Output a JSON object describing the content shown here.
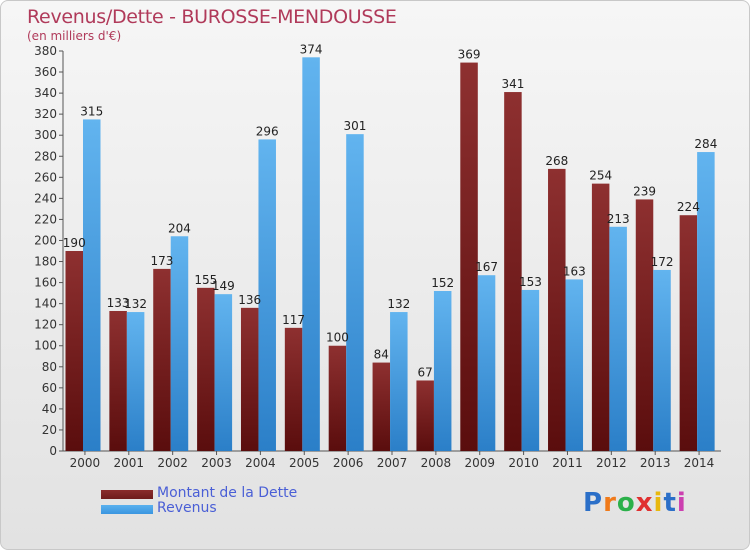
{
  "title": "Revenus/Dette - BUROSSE-MENDOUSSE",
  "subtitle": "(en milliers d'€)",
  "brand": {
    "text": "Proxiti",
    "letter_colors": [
      "#2b6fc8",
      "#f07a1a",
      "#2bb04a",
      "#e03030",
      "#e8b80e",
      "#2b6fc8",
      "#cc3fb0"
    ]
  },
  "colors": {
    "debt": "#6e1c1c",
    "debt_light": "#8a2c2c",
    "revenue": "#3a95e0",
    "revenue_light": "#5ab0ee"
  },
  "legend": {
    "debt_label": "Montant de la Dette",
    "revenue_label": "Revenus"
  },
  "chart_data": {
    "type": "bar",
    "title": "Revenus/Dette - BUROSSE-MENDOUSSE",
    "subtitle": "(en milliers d'€)",
    "categories": [
      "2000",
      "2001",
      "2002",
      "2003",
      "2004",
      "2005",
      "2006",
      "2007",
      "2008",
      "2009",
      "2010",
      "2011",
      "2012",
      "2013",
      "2014"
    ],
    "series": [
      {
        "name": "Montant de la Dette",
        "values": [
          190,
          133,
          173,
          155,
          136,
          117,
          100,
          84,
          67,
          369,
          341,
          268,
          254,
          239,
          224
        ]
      },
      {
        "name": "Revenus",
        "values": [
          315,
          132,
          204,
          149,
          296,
          374,
          301,
          132,
          152,
          167,
          153,
          163,
          213,
          172,
          284
        ]
      }
    ],
    "ylim": [
      0,
      380
    ],
    "yticks": [
      0,
      20,
      40,
      60,
      80,
      100,
      120,
      140,
      160,
      180,
      200,
      220,
      240,
      260,
      280,
      300,
      320,
      340,
      360,
      380
    ],
    "grid": false,
    "legend_position": "bottom-left"
  }
}
